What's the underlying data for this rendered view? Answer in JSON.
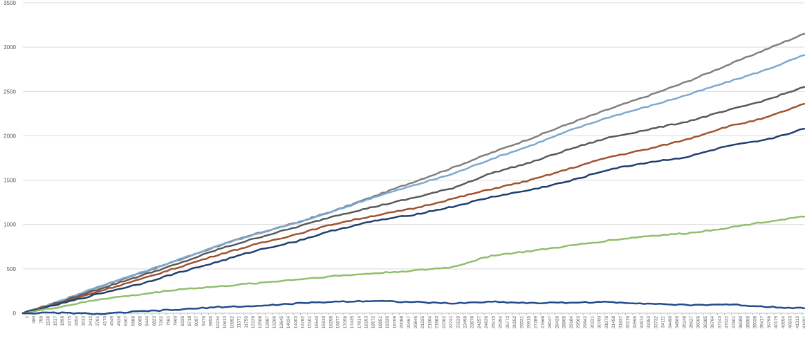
{
  "chart_data": {
    "type": "line",
    "title": "",
    "xlabel": "",
    "ylabel": "",
    "ylim": [
      0,
      3500
    ],
    "xlim": [
      1,
      41691
    ],
    "grid": true,
    "legend": "none",
    "y_ticks": [
      "0",
      "500",
      "1000",
      "1500",
      "2000",
      "2500",
      "3000",
      "3500"
    ],
    "x_ticks": [
      "1",
      "380",
      "759",
      "1138",
      "1517",
      "1896",
      "2275",
      "2654",
      "3033",
      "3412",
      "3791",
      "4170",
      "4549",
      "4928",
      "5307",
      "5686",
      "6065",
      "6444",
      "6823",
      "7202",
      "7581",
      "7960",
      "8339",
      "8718",
      "9097",
      "9476",
      "9855",
      "10234",
      "10613",
      "10992",
      "11371",
      "11750",
      "12129",
      "12508",
      "12887",
      "13266",
      "13645",
      "14024",
      "14403",
      "14782",
      "15161",
      "15540",
      "15919",
      "16298",
      "16677",
      "17056",
      "17435",
      "17814",
      "18193",
      "18572",
      "18951",
      "19330",
      "19709",
      "20088",
      "20467",
      "20846",
      "21225",
      "21604",
      "21983",
      "22362",
      "22741",
      "23120",
      "23499",
      "23878",
      "24257",
      "24636",
      "25015",
      "25394",
      "25773",
      "26152",
      "26531",
      "26910",
      "27289",
      "27668",
      "28047",
      "28426",
      "28805",
      "29184",
      "29563",
      "29942",
      "30321",
      "30700",
      "31079",
      "31458",
      "31837",
      "32216",
      "32595",
      "32974",
      "33353",
      "33732",
      "34111",
      "34490",
      "34869",
      "35248",
      "35627",
      "36006",
      "36385",
      "36764",
      "37143",
      "37522",
      "37901",
      "38280",
      "38659",
      "39038",
      "39417",
      "39796",
      "40175",
      "40554",
      "40933",
      "41312",
      "41691"
    ],
    "x": [
      1,
      2084,
      4168,
      6252,
      8336,
      10420,
      12504,
      14588,
      16672,
      18756,
      20840,
      22924,
      25008,
      27092,
      29176,
      31260,
      33344,
      35428,
      37512,
      39596,
      41691
    ],
    "series": [
      {
        "color": "#7f7f7f",
        "values": [
          0,
          145,
          305,
          450,
          600,
          760,
          900,
          1020,
          1160,
          1320,
          1480,
          1640,
          1810,
          1970,
          2140,
          2300,
          2450,
          2610,
          2790,
          2970,
          3150
        ]
      },
      {
        "color": "#7fa7cf",
        "values": [
          0,
          145,
          310,
          455,
          605,
          765,
          895,
          1015,
          1155,
          1310,
          1440,
          1570,
          1740,
          1890,
          2060,
          2210,
          2330,
          2460,
          2600,
          2740,
          2910
        ]
      },
      {
        "color": "#595959",
        "values": [
          0,
          130,
          280,
          420,
          560,
          720,
          850,
          970,
          1100,
          1200,
          1300,
          1410,
          1580,
          1700,
          1850,
          1980,
          2070,
          2160,
          2280,
          2400,
          2550
        ]
      },
      {
        "color": "#a0522d",
        "values": [
          0,
          120,
          255,
          380,
          520,
          660,
          780,
          890,
          1010,
          1100,
          1180,
          1290,
          1400,
          1500,
          1630,
          1760,
          1850,
          1960,
          2100,
          2200,
          2360
        ]
      },
      {
        "color": "#1f3f6f",
        "values": [
          0,
          110,
          225,
          330,
          460,
          580,
          710,
          810,
          940,
          1040,
          1110,
          1200,
          1310,
          1390,
          1490,
          1620,
          1700,
          1760,
          1880,
          1950,
          2080
        ]
      },
      {
        "color": "#8fbf6a",
        "values": [
          0,
          75,
          160,
          210,
          270,
          300,
          340,
          380,
          420,
          450,
          480,
          520,
          650,
          700,
          760,
          820,
          870,
          900,
          960,
          1030,
          1090
        ]
      },
      {
        "color": "#254b8c",
        "values": [
          0,
          5,
          -10,
          20,
          40,
          70,
          80,
          110,
          130,
          140,
          125,
          110,
          130,
          115,
          120,
          125,
          110,
          90,
          100,
          75,
          55
        ]
      }
    ]
  }
}
